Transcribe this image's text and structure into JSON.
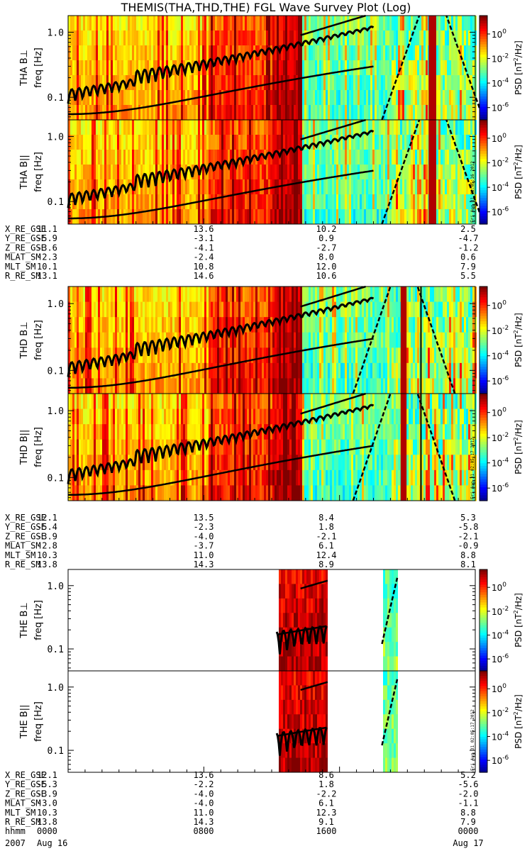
{
  "title": "THEMIS(THA,THD,THE) FGL Wave Survey Plot (Log)",
  "colorbar": {
    "label": "PSD [nT^2/Hz]",
    "tick_labels": [
      "10^0",
      "10^-2",
      "10^-4",
      "10^-6"
    ],
    "exponents": [
      0,
      -2,
      -4,
      -6
    ]
  },
  "freq_axis": {
    "label": "freq [Hz]",
    "tick_labels": [
      "1.0",
      "0.1"
    ],
    "range": [
      0.045,
      1.8
    ]
  },
  "timestamps": [
    "Fri Aug 31 02:05:16 2012",
    "Fri Aug 31 02:05:17 2012",
    "Fri Aug 31 02:05:17 2012"
  ],
  "probes": [
    {
      "name": "THA",
      "panels": [
        {
          "ylabel": "THA B⊥"
        },
        {
          "ylabel": "THA B||"
        }
      ],
      "ephemeris": [
        {
          "label": "X_RE_GSE",
          "values": [
            "11.1",
            "13.6",
            "10.2",
            "2.5"
          ]
        },
        {
          "label": "Y_RE_GSE",
          "values": [
            "-5.9",
            "-3.1",
            "0.9",
            "-4.7"
          ]
        },
        {
          "label": "Z_RE_GSE",
          "values": [
            "-3.6",
            "-4.1",
            "-2.7",
            "-1.2"
          ]
        },
        {
          "label": "MLAT_SM",
          "values": [
            "-2.3",
            "-2.4",
            "8.0",
            "0.6"
          ]
        },
        {
          "label": "MLT_SM",
          "values": [
            "10.1",
            "10.8",
            "12.0",
            "7.9"
          ]
        },
        {
          "label": "R_RE_SM",
          "values": [
            "13.1",
            "14.6",
            "10.6",
            "5.5"
          ]
        }
      ]
    },
    {
      "name": "THD",
      "panels": [
        {
          "ylabel": "THD B⊥"
        },
        {
          "ylabel": "THD B||"
        }
      ],
      "ephemeris": [
        {
          "label": "X_RE_GSE",
          "values": [
            "12.1",
            "13.5",
            "8.4",
            "5.3"
          ]
        },
        {
          "label": "Y_RE_GSE",
          "values": [
            "-5.4",
            "-2.3",
            "1.8",
            "-5.8"
          ]
        },
        {
          "label": "Z_RE_GSE",
          "values": [
            "-3.9",
            "-4.0",
            "-2.1",
            "-2.1"
          ]
        },
        {
          "label": "MLAT_SM",
          "values": [
            "-2.8",
            "-3.7",
            "6.1",
            "-0.9"
          ]
        },
        {
          "label": "MLT_SM",
          "values": [
            "10.3",
            "11.0",
            "12.4",
            "8.8"
          ]
        },
        {
          "label": "R_RE_SM",
          "values": [
            "13.8",
            "14.3",
            "8.9",
            "8.1"
          ]
        }
      ]
    },
    {
      "name": "THE",
      "panels": [
        {
          "ylabel": "THE B⊥"
        },
        {
          "ylabel": "THE B||"
        }
      ],
      "ephemeris": [
        {
          "label": "X_RE_GSE",
          "values": [
            "12.1",
            "13.6",
            "8.6",
            "5.2"
          ]
        },
        {
          "label": "Y_RE_GSE",
          "values": [
            "-5.3",
            "-2.2",
            "1.8",
            "-5.6"
          ]
        },
        {
          "label": "Z_RE_GSE",
          "values": [
            "-3.9",
            "-4.0",
            "-2.2",
            "-2.0"
          ]
        },
        {
          "label": "MLAT_SM",
          "values": [
            "-3.0",
            "-4.0",
            "6.1",
            "-1.1"
          ]
        },
        {
          "label": "MLT_SM",
          "values": [
            "10.3",
            "11.0",
            "12.3",
            "8.8"
          ]
        },
        {
          "label": "R_RE_SM",
          "values": [
            "13.8",
            "14.3",
            "9.1",
            "7.9"
          ]
        },
        {
          "label": "hhmm",
          "values": [
            "0000",
            "0800",
            "1600",
            "0000"
          ]
        }
      ]
    }
  ],
  "time_axis": {
    "year": "2007",
    "start_label": "Aug 16",
    "end_label": "Aug 17",
    "ticks_hours": [
      0,
      8,
      16,
      24
    ]
  },
  "chart_data": {
    "type": "heatmap",
    "title": "THEMIS(THA,THD,THE) FGL Wave Survey Plot (Log)",
    "xlabel": "hhmm",
    "ylabel": "freq [Hz]",
    "colorbar_label": "PSD [nT^2/Hz]",
    "x_range_hours": [
      0,
      24
    ],
    "y_range_hz": [
      0.045,
      1.8
    ],
    "y_scale": "log",
    "z_range_log10": [
      -7,
      1.5
    ],
    "date_range": [
      "2007 Aug 16",
      "2007 Aug 17"
    ],
    "series": [
      {
        "name": "THA B⊥",
        "coverage_hours": [
          [
            0,
            24
          ]
        ]
      },
      {
        "name": "THA B||",
        "coverage_hours": [
          [
            0,
            24
          ]
        ]
      },
      {
        "name": "THD B⊥",
        "coverage_hours": [
          [
            0,
            24
          ]
        ]
      },
      {
        "name": "THD B||",
        "coverage_hours": [
          [
            0,
            24
          ]
        ]
      },
      {
        "name": "THE B⊥",
        "coverage_hours": [
          [
            12.3,
            15.3
          ],
          [
            18.5,
            19.4
          ]
        ]
      },
      {
        "name": "THE B||",
        "coverage_hours": [
          [
            12.3,
            15.3
          ],
          [
            18.5,
            19.4
          ]
        ]
      }
    ]
  }
}
